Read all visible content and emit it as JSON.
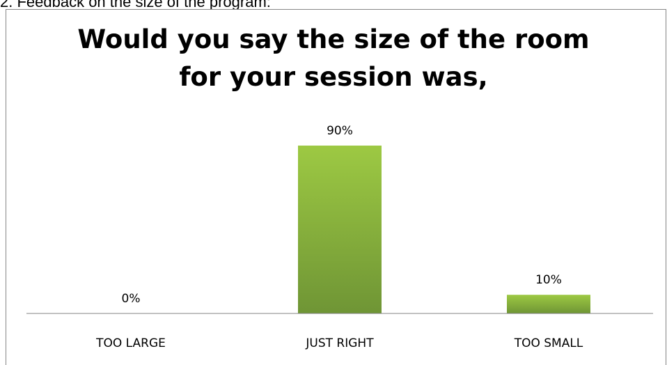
{
  "caption": "2. Feedback on the size of the program:",
  "chart_data": {
    "type": "bar",
    "title": "Would you say the size of the room for your session was,",
    "categories": [
      "TOO LARGE",
      "JUST RIGHT",
      "TOO SMALL"
    ],
    "values": [
      0,
      90,
      10
    ],
    "data_labels": [
      "0%",
      "90%",
      "10%"
    ],
    "unit": "%",
    "ylim": [
      0,
      100
    ],
    "grid": false,
    "legend": "none",
    "bar_color_top": "#9dc943",
    "bar_color_bottom": "#6f9535"
  }
}
